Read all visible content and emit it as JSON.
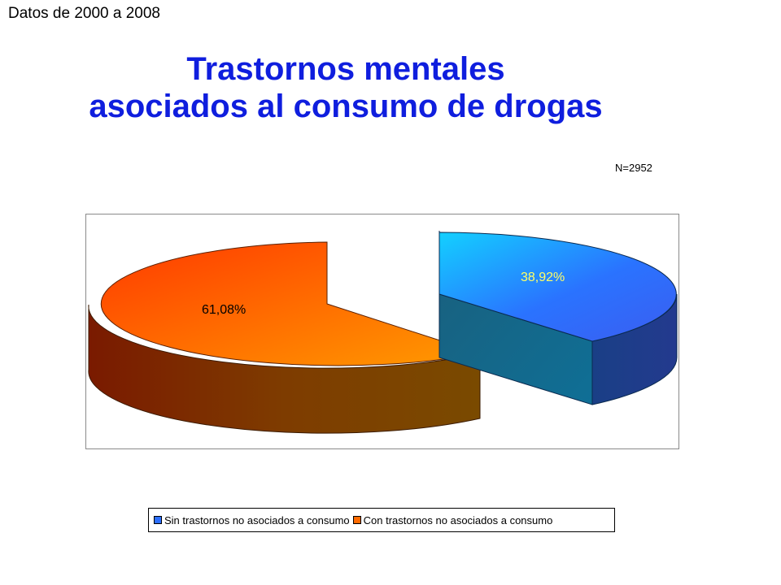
{
  "header": {
    "date_note": "Datos de 2000 a 2008",
    "title_line1": "Trastornos mentales",
    "title_line2": "asociados al consumo de drogas",
    "n_label": "N=2952"
  },
  "colors": {
    "blue_slice": "#1e6bff",
    "orange_slice": "#ff6a00",
    "title": "#0f1ede"
  },
  "chart_data": {
    "type": "pie",
    "style": "3d-exploded",
    "title": "Trastornos mentales asociados al consumo de drogas",
    "slices": [
      {
        "name": "Sin trastornos no asociados a consumo",
        "value": 38.92,
        "label": "38,92%",
        "color": "#1e6bff"
      },
      {
        "name": "Con trastornos no asociados a consumo",
        "value": 61.08,
        "label": "61,08%",
        "color": "#ff6a00"
      }
    ],
    "legend_position": "bottom"
  },
  "legend": {
    "items": [
      {
        "label": "Sin trastornos no asociados a consumo",
        "color": "#2d6fff"
      },
      {
        "label": "Con trastornos no asociados a consumo",
        "color": "#ff6a00"
      }
    ]
  }
}
